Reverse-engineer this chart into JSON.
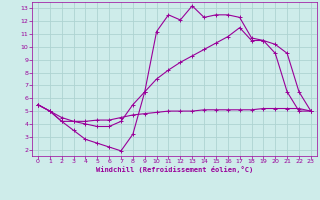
{
  "xlabel": "Windchill (Refroidissement éolien,°C)",
  "background_color": "#ceecea",
  "grid_color": "#aed4d2",
  "line_color": "#990099",
  "xlim": [
    -0.5,
    23.5
  ],
  "ylim": [
    1.5,
    13.5
  ],
  "xticks": [
    0,
    1,
    2,
    3,
    4,
    5,
    6,
    7,
    8,
    9,
    10,
    11,
    12,
    13,
    14,
    15,
    16,
    17,
    18,
    19,
    20,
    21,
    22,
    23
  ],
  "yticks": [
    2,
    3,
    4,
    5,
    6,
    7,
    8,
    9,
    10,
    11,
    12,
    13
  ],
  "curve1_x": [
    0,
    1,
    2,
    3,
    4,
    5,
    6,
    7,
    8,
    9,
    10,
    11,
    12,
    13,
    14,
    15,
    16,
    17,
    18,
    19,
    20,
    21,
    22,
    23
  ],
  "curve1_y": [
    5.5,
    5.0,
    4.2,
    3.5,
    2.8,
    2.5,
    2.2,
    1.9,
    3.2,
    6.5,
    11.2,
    12.5,
    12.1,
    13.2,
    12.3,
    12.5,
    12.5,
    12.3,
    10.7,
    10.5,
    9.5,
    6.5,
    5.0,
    5.0
  ],
  "curve2_x": [
    0,
    1,
    2,
    3,
    4,
    5,
    6,
    7,
    8,
    9,
    10,
    11,
    12,
    13,
    14,
    15,
    16,
    17,
    18,
    19,
    20,
    21,
    22,
    23
  ],
  "curve2_y": [
    5.5,
    5.0,
    4.5,
    4.2,
    4.0,
    3.8,
    3.8,
    4.2,
    5.5,
    6.5,
    7.5,
    8.2,
    8.8,
    9.3,
    9.8,
    10.3,
    10.8,
    11.5,
    10.5,
    10.5,
    10.2,
    9.5,
    6.5,
    5.0
  ],
  "curve3_x": [
    0,
    1,
    2,
    3,
    4,
    5,
    6,
    7,
    8,
    9,
    10,
    11,
    12,
    13,
    14,
    15,
    16,
    17,
    18,
    19,
    20,
    21,
    22,
    23
  ],
  "curve3_y": [
    5.5,
    5.0,
    4.2,
    4.2,
    4.2,
    4.3,
    4.3,
    4.5,
    4.7,
    4.8,
    4.9,
    5.0,
    5.0,
    5.0,
    5.1,
    5.1,
    5.1,
    5.1,
    5.1,
    5.2,
    5.2,
    5.2,
    5.2,
    5.0
  ]
}
